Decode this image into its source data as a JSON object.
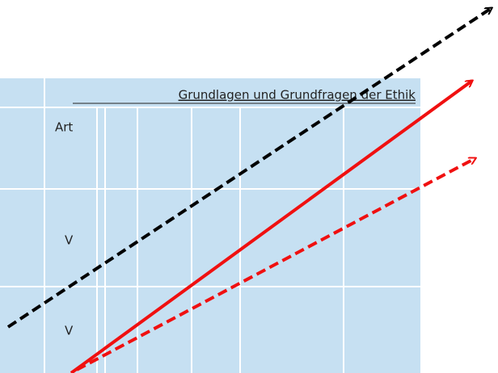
{
  "header": {
    "title": "Grundlagen und Grundfragen der Ethik"
  },
  "table": {
    "rows": [
      [
        "Art"
      ],
      [
        "V"
      ],
      [
        "V"
      ]
    ]
  }
}
